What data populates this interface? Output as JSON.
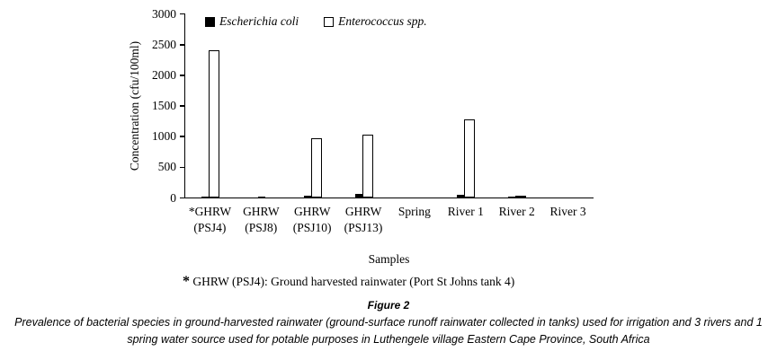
{
  "chart_data": {
    "type": "bar",
    "title": "",
    "categories": [
      "*GHRW\n(PSJ4)",
      "GHRW\n(PSJ8)",
      "GHRW\n(PSJ10)",
      "GHRW\n(PSJ13)",
      "Spring",
      "River 1",
      "River 2",
      "River 3"
    ],
    "series": [
      {
        "name": "Escherichia coli",
        "fill": "solid",
        "color": "#000000",
        "values": [
          10,
          15,
          30,
          60,
          0,
          40,
          10,
          0
        ]
      },
      {
        "name": "Enterococcus spp.",
        "fill": "outline",
        "color": "#ffffff",
        "values": [
          2400,
          0,
          970,
          1020,
          0,
          1280,
          20,
          0
        ]
      }
    ],
    "xlabel": "Samples",
    "ylabel": "Concentration (cfu/100ml)",
    "ylim": [
      0,
      3000
    ],
    "yticks": [
      0,
      500,
      1000,
      1500,
      2000,
      2500,
      3000
    ],
    "legend_position": "top-left-inside",
    "grid": false
  },
  "footnote": {
    "marker": "*",
    "text": " GHRW (PSJ4): Ground harvested rainwater (Port St Johns tank 4)"
  },
  "figure": {
    "label": "Figure 2",
    "caption": "Prevalence of bacterial species in ground-harvested rainwater (ground-surface runoff rainwater collected in tanks) used for irrigation and 3 rivers and 1 spring water source used for potable purposes in Luthengele village Eastern Cape Province, South Africa"
  }
}
